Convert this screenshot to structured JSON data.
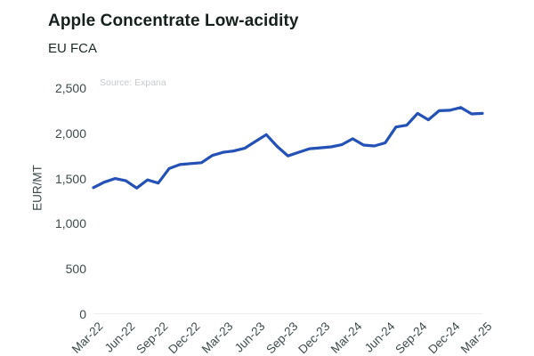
{
  "header": {
    "title": "Apple Concentrate Low-acidity",
    "subtitle": "EU FCA",
    "source": "Source: Expana"
  },
  "colors": {
    "line": "#2351b5",
    "title_text": "#16211f",
    "tick_text": "#3e4a4b",
    "source_text": "#c7cbce",
    "axis_line": "#ededed",
    "background": "#ffffff"
  },
  "chart_data": {
    "type": "line",
    "title": "Apple Concentrate Low-acidity",
    "subtitle": "EU FCA",
    "source": "Source: Expana",
    "xlabel": "",
    "ylabel": "EUR/MT",
    "ylim": [
      0,
      2500
    ],
    "grid": false,
    "legend": "none",
    "x": [
      "Mar-22",
      "Apr-22",
      "May-22",
      "Jun-22",
      "Jul-22",
      "Aug-22",
      "Sep-22",
      "Oct-22",
      "Nov-22",
      "Dec-22",
      "Jan-23",
      "Feb-23",
      "Mar-23",
      "Apr-23",
      "May-23",
      "Jun-23",
      "Jul-23",
      "Aug-23",
      "Sep-23",
      "Oct-23",
      "Nov-23",
      "Dec-23",
      "Jan-24",
      "Feb-24",
      "Mar-24",
      "Apr-24",
      "May-24",
      "Jun-24",
      "Jul-24",
      "Aug-24",
      "Sep-24",
      "Oct-24",
      "Nov-24",
      "Dec-24",
      "Jan-25",
      "Feb-25",
      "Mar-25"
    ],
    "series": [
      {
        "name": "EU FCA",
        "values": [
          1400,
          1460,
          1500,
          1475,
          1395,
          1485,
          1450,
          1610,
          1655,
          1665,
          1675,
          1755,
          1790,
          1805,
          1835,
          1910,
          1985,
          1855,
          1750,
          1790,
          1830,
          1840,
          1850,
          1875,
          1940,
          1870,
          1860,
          1895,
          2070,
          2090,
          2220,
          2150,
          2250,
          2255,
          2285,
          2215,
          2220
        ]
      }
    ],
    "x_tick_labels": [
      "Mar-22",
      "Jun-22",
      "Sep-22",
      "Dec-22",
      "Mar-23",
      "Jun-23",
      "Sep-23",
      "Dec-23",
      "Mar-24",
      "Jun-24",
      "Sep-24",
      "Dec-24",
      "Mar-25"
    ],
    "x_tick_step": 3,
    "y_tick_values": [
      0,
      500,
      1000,
      1500,
      2000,
      2500
    ],
    "y_tick_labels": [
      "0",
      "500",
      "1,000",
      "1,500",
      "2,000",
      "2,500"
    ]
  }
}
